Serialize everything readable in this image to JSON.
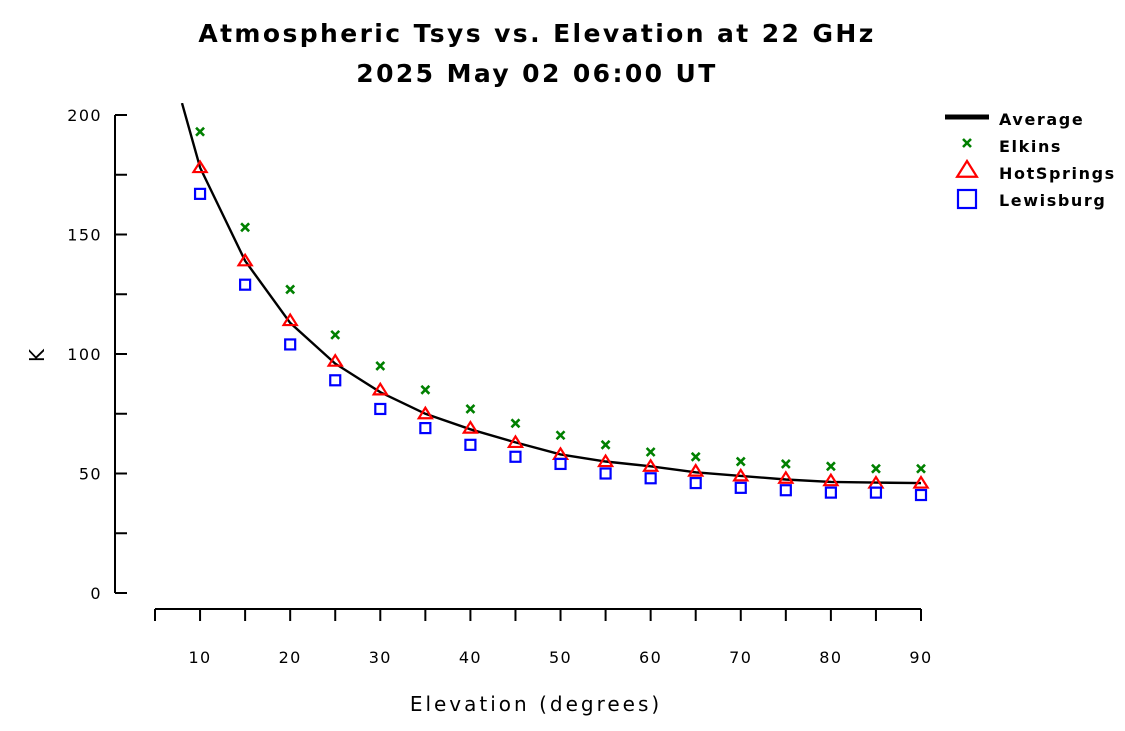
{
  "chart_data": {
    "type": "scatter",
    "title": "Atmospheric Tsys vs. Elevation at 22 GHz",
    "subtitle": "2025 May 02 06:00 UT",
    "xlabel": "Elevation (degrees)",
    "ylabel": "K",
    "xlim": [
      5,
      90
    ],
    "ylim": [
      0,
      200
    ],
    "x_ticks": [
      10,
      20,
      30,
      40,
      50,
      60,
      70,
      80,
      90
    ],
    "y_ticks": [
      0,
      50,
      100,
      150,
      200
    ],
    "grid": false,
    "legend_position": "top-right",
    "x": [
      10,
      15,
      20,
      25,
      30,
      35,
      40,
      45,
      50,
      55,
      60,
      65,
      70,
      75,
      80,
      85,
      90
    ],
    "series": [
      {
        "name": "Average",
        "style": "line",
        "color": "#000000",
        "curve_x": [
          8,
          10,
          15,
          20,
          25,
          30,
          35,
          40,
          45,
          50,
          55,
          60,
          65,
          70,
          75,
          80,
          85,
          90
        ],
        "curve_y": [
          205,
          178,
          139,
          113,
          96,
          84,
          75,
          68.5,
          63,
          58,
          55,
          53,
          50.5,
          49,
          47.5,
          46.5,
          46.2,
          46
        ]
      },
      {
        "name": "Elkins",
        "style": "x-marker",
        "color": "#008000",
        "values": [
          193,
          153,
          127,
          108,
          95,
          85,
          77,
          71,
          66,
          62,
          59,
          57,
          55,
          54,
          53,
          52,
          52
        ]
      },
      {
        "name": "HotSprings",
        "style": "triangle",
        "color": "#ff0000",
        "values": [
          178,
          139,
          114,
          97,
          85,
          75,
          69,
          63,
          58,
          55,
          53,
          51,
          49,
          48,
          47,
          46,
          46
        ]
      },
      {
        "name": "Lewisburg",
        "style": "square",
        "color": "#0000ff",
        "values": [
          167,
          129,
          104,
          89,
          77,
          69,
          62,
          57,
          54,
          50,
          48,
          46,
          44,
          43,
          42,
          42,
          41
        ]
      }
    ]
  }
}
